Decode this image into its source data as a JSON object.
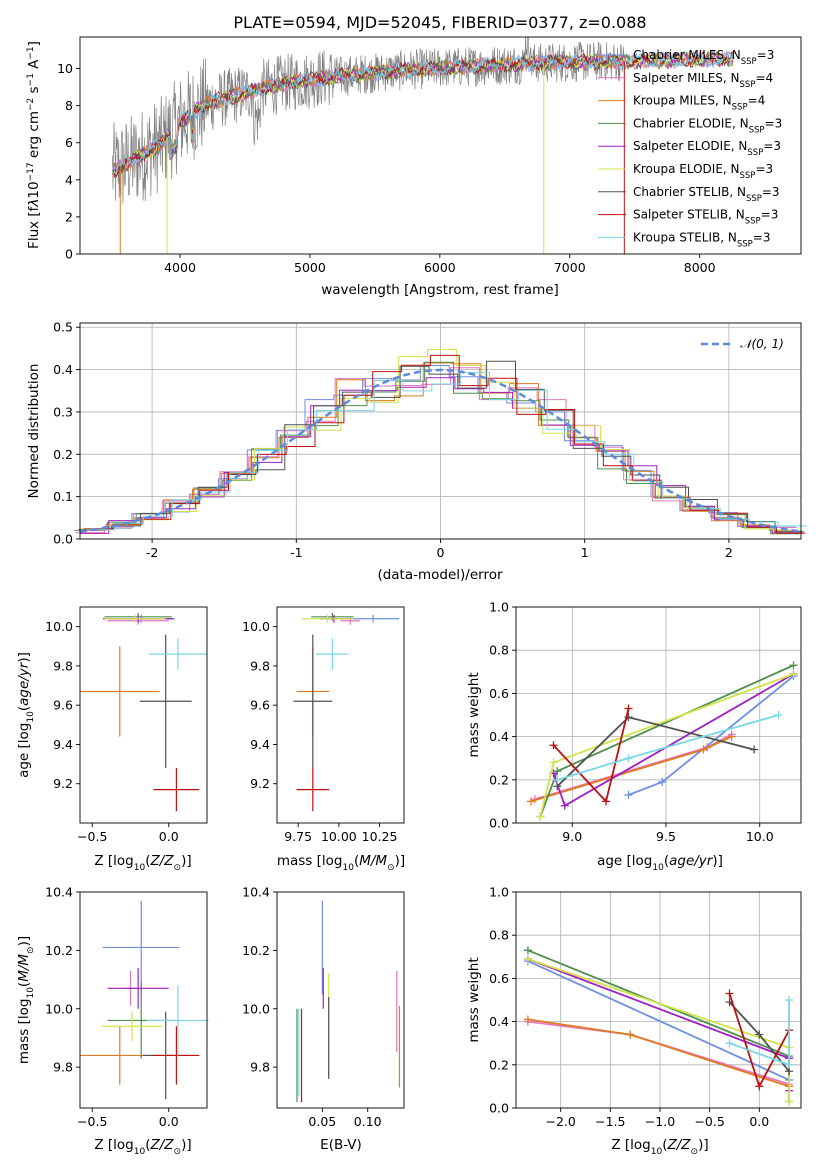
{
  "title": "PLATE=0594, MJD=52045, FIBERID=0377, z=0.088",
  "colors": {
    "chabrier_miles": "#6f8fe0",
    "salpeter_miles": "#e377c2",
    "kroupa_miles": "#e07b1f",
    "chabrier_elodie": "#4f8f4f",
    "salpeter_elodie": "#a020c0",
    "kroupa_elodie": "#d2e24a",
    "chabrier_stelib": "#505050",
    "salpeter_stelib": "#c01010",
    "kroupa_stelib": "#7ad6e6",
    "data": "#808080"
  },
  "chart_data": [
    {
      "type": "line",
      "xlabel": "wavelength [Angstrom, rest frame]",
      "ylabel": "Flux [f_λ10^-17 erg cm^-2 s^-1 A^-1]",
      "xlim": [
        3230,
        8780
      ],
      "ylim": [
        0,
        11.7
      ],
      "xticks": [
        4000,
        5000,
        6000,
        7000,
        8000
      ],
      "yticks": [
        0,
        2,
        4,
        6,
        8,
        10
      ],
      "legend_position": "right",
      "legend": [
        {
          "key": "chabrier_miles",
          "label": "Chabrier MILES, N_SSP=3"
        },
        {
          "key": "salpeter_miles",
          "label": "Salpeter MILES, N_SSP=4"
        },
        {
          "key": "kroupa_miles",
          "label": "Kroupa MILES, N_SSP=4"
        },
        {
          "key": "chabrier_elodie",
          "label": "Chabrier ELODIE, N_SSP=3"
        },
        {
          "key": "salpeter_elodie",
          "label": "Salpeter ELODIE, N_SSP=3"
        },
        {
          "key": "kroupa_elodie",
          "label": "Kroupa ELODIE, N_SSP=3"
        },
        {
          "key": "chabrier_stelib",
          "label": "Chabrier STELIB, N_SSP=3"
        },
        {
          "key": "salpeter_stelib",
          "label": "Salpeter STELIB, N_SSP=3"
        },
        {
          "key": "kroupa_stelib",
          "label": "Kroupa STELIB, N_SSP=3"
        }
      ],
      "model_continuum": {
        "x": [
          3480,
          3550,
          3700,
          3850,
          4000,
          4200,
          4500,
          4800,
          5100,
          5400,
          5800,
          6200,
          6600,
          7000,
          7400,
          7800,
          8200
        ],
        "y": [
          4.5,
          4.7,
          5.3,
          5.9,
          7.1,
          8.1,
          8.7,
          9.2,
          9.5,
          9.7,
          9.95,
          10.1,
          10.25,
          10.35,
          10.4,
          10.45,
          10.5
        ]
      },
      "data_range": [
        3480,
        7420
      ]
    },
    {
      "type": "line",
      "xlabel": "(data-model)/error",
      "ylabel": "Normed distribution",
      "xlim": [
        -2.5,
        2.5
      ],
      "ylim": [
        0,
        0.51
      ],
      "xticks": [
        -2,
        -1,
        0,
        1,
        2
      ],
      "yticks": [
        0.0,
        0.1,
        0.2,
        0.3,
        0.4,
        0.5
      ],
      "grid": true,
      "reference": {
        "label": "N(0,1)",
        "type": "gaussian",
        "mean": 0,
        "sigma": 1,
        "color": "#5b8bd9"
      },
      "legend_position": "top-right",
      "hist_bins": [
        -2.5,
        -2.3,
        -2.1,
        -1.9,
        -1.7,
        -1.5,
        -1.3,
        -1.1,
        -0.9,
        -0.7,
        -0.5,
        -0.3,
        -0.1,
        0.1,
        0.3,
        0.5,
        0.7,
        0.9,
        1.1,
        1.3,
        1.5,
        1.7,
        1.9,
        2.1,
        2.3,
        2.5
      ]
    },
    {
      "type": "scatter",
      "xlabel": "Z [log10(Z/Z_sun)]",
      "ylabel": "age  [log10(age/yr)]",
      "xlim": [
        -0.58,
        0.25
      ],
      "ylim": [
        9.0,
        10.1
      ],
      "xticks": [
        -0.5,
        0.0
      ],
      "xticklabels": [
        "−0.5",
        "0.0"
      ],
      "yticks": [
        9.2,
        9.4,
        9.6,
        9.8,
        10.0
      ],
      "yticklabels": [
        "9.2",
        "9.4",
        "9.6",
        "9.8",
        "10.0"
      ],
      "points": [
        {
          "key": "chabrier_miles",
          "x": -0.18,
          "xerr": 0.22,
          "y": 10.04,
          "yerr": 0.02
        },
        {
          "key": "salpeter_miles",
          "x": -0.2,
          "xerr": 0.2,
          "y": 10.03,
          "yerr": 0.02
        },
        {
          "key": "kroupa_miles",
          "x": -0.32,
          "xerr": 0.26,
          "y": 9.67,
          "yerr": 0.23
        },
        {
          "key": "chabrier_elodie",
          "x": -0.2,
          "xerr": 0.22,
          "y": 10.05,
          "yerr": 0.02
        },
        {
          "key": "salpeter_elodie",
          "x": -0.2,
          "xerr": 0.23,
          "y": 10.04,
          "yerr": 0.02
        },
        {
          "key": "kroupa_elodie",
          "x": -0.22,
          "xerr": 0.2,
          "y": 10.04,
          "yerr": 0.02
        },
        {
          "key": "chabrier_stelib",
          "x": -0.02,
          "xerr": 0.17,
          "y": 9.62,
          "yerr": 0.34
        },
        {
          "key": "salpeter_stelib",
          "x": 0.05,
          "xerr": 0.15,
          "y": 9.17,
          "yerr": 0.11
        },
        {
          "key": "kroupa_stelib",
          "x": 0.06,
          "xerr": 0.19,
          "y": 9.86,
          "yerr": 0.08
        }
      ]
    },
    {
      "type": "scatter",
      "xlabel": "mass [log10(M/M_sun)]",
      "ylabel": "",
      "xlim": [
        9.62,
        10.4
      ],
      "ylim": [
        9.0,
        10.1
      ],
      "xticks": [
        9.75,
        10.0,
        10.25
      ],
      "xticklabels": [
        "9.75",
        "10.00",
        "10.25"
      ],
      "yticks": [
        9.2,
        9.4,
        9.6,
        9.8,
        10.0
      ],
      "yticklabels": [
        "9.2",
        "9.4",
        "9.6",
        "9.8",
        "10.0"
      ],
      "points": [
        {
          "key": "chabrier_miles",
          "x": 10.21,
          "xerr": 0.16,
          "y": 10.04,
          "yerr": 0.02
        },
        {
          "key": "salpeter_miles",
          "x": 10.07,
          "xerr": 0.06,
          "y": 10.03,
          "yerr": 0.02
        },
        {
          "key": "kroupa_miles",
          "x": 9.84,
          "xerr": 0.1,
          "y": 9.67,
          "yerr": 0.23
        },
        {
          "key": "chabrier_elodie",
          "x": 9.96,
          "xerr": 0.13,
          "y": 10.05,
          "yerr": 0.02
        },
        {
          "key": "salpeter_elodie",
          "x": 9.97,
          "xerr": 0.09,
          "y": 10.04,
          "yerr": 0.02
        },
        {
          "key": "kroupa_elodie",
          "x": 9.93,
          "xerr": 0.16,
          "y": 10.04,
          "yerr": 0.02
        },
        {
          "key": "chabrier_stelib",
          "x": 9.84,
          "xerr": 0.12,
          "y": 9.62,
          "yerr": 0.34
        },
        {
          "key": "salpeter_stelib",
          "x": 9.84,
          "xerr": 0.1,
          "y": 9.17,
          "yerr": 0.11
        },
        {
          "key": "kroupa_stelib",
          "x": 9.96,
          "xerr": 0.1,
          "y": 9.86,
          "yerr": 0.08
        }
      ]
    },
    {
      "type": "line",
      "xlabel": "age  [log10(age/yr)]",
      "ylabel": "mass weight",
      "xlim": [
        8.7,
        10.22
      ],
      "ylim": [
        0.0,
        1.0
      ],
      "xticks": [
        9.0,
        9.5,
        10.0
      ],
      "xticklabels": [
        "9.0",
        "9.5",
        "10.0"
      ],
      "yticks": [
        0.0,
        0.2,
        0.4,
        0.6,
        0.8,
        1.0
      ],
      "yticklabels": [
        "0.0",
        "0.2",
        "0.4",
        "0.6",
        "0.8",
        "1.0"
      ],
      "grid": true,
      "series": [
        {
          "key": "chabrier_miles",
          "x": [
            9.3,
            9.48,
            10.18
          ],
          "y": [
            0.13,
            0.19,
            0.68
          ]
        },
        {
          "key": "salpeter_miles",
          "x": [
            8.8,
            9.72,
            9.85
          ],
          "y": [
            0.11,
            0.35,
            0.41
          ]
        },
        {
          "key": "kroupa_miles",
          "x": [
            8.78,
            9.7,
            9.85
          ],
          "y": [
            0.1,
            0.34,
            0.4
          ]
        },
        {
          "key": "chabrier_elodie",
          "x": [
            8.83,
            8.92,
            10.18
          ],
          "y": [
            0.03,
            0.24,
            0.73
          ]
        },
        {
          "key": "salpeter_elodie",
          "x": [
            8.9,
            8.96,
            10.18
          ],
          "y": [
            0.23,
            0.08,
            0.69
          ]
        },
        {
          "key": "kroupa_elodie",
          "x": [
            8.83,
            8.9,
            10.18
          ],
          "y": [
            0.03,
            0.28,
            0.69
          ]
        },
        {
          "key": "chabrier_stelib",
          "x": [
            8.92,
            9.3,
            9.97
          ],
          "y": [
            0.17,
            0.49,
            0.34
          ]
        },
        {
          "key": "salpeter_stelib",
          "x": [
            8.9,
            9.18,
            9.3
          ],
          "y": [
            0.36,
            0.1,
            0.53
          ]
        },
        {
          "key": "kroupa_stelib",
          "x": [
            8.92,
            9.3,
            10.1
          ],
          "y": [
            0.2,
            0.3,
            0.5
          ]
        }
      ]
    },
    {
      "type": "scatter",
      "xlabel": "Z [log10(Z/Z_sun)]",
      "ylabel": "mass [log10(M/M_sun)]",
      "xlim": [
        -0.58,
        0.25
      ],
      "ylim": [
        9.66,
        10.4
      ],
      "xticks": [
        -0.5,
        0.0
      ],
      "xticklabels": [
        "−0.5",
        "0.0"
      ],
      "yticks": [
        9.8,
        10.0,
        10.2,
        10.4
      ],
      "yticklabels": [
        "9.8",
        "10.0",
        "10.2",
        "10.4"
      ],
      "points": [
        {
          "key": "chabrier_miles",
          "x": -0.18,
          "xerr": 0.25,
          "y": 10.21,
          "yerr": 0.16
        },
        {
          "key": "salpeter_miles",
          "x": -0.25,
          "xerr": 0.05,
          "y": 10.07,
          "yerr": 0.06
        },
        {
          "key": "kroupa_miles",
          "x": -0.32,
          "xerr": 0.26,
          "y": 9.84,
          "yerr": 0.1
        },
        {
          "key": "chabrier_elodie",
          "x": -0.18,
          "xerr": 0.22,
          "y": 9.96,
          "yerr": 0.13
        },
        {
          "key": "salpeter_elodie",
          "x": -0.2,
          "xerr": 0.2,
          "y": 10.07,
          "yerr": 0.07
        },
        {
          "key": "kroupa_elodie",
          "x": -0.24,
          "xerr": 0.2,
          "y": 9.94,
          "yerr": 0.05
        },
        {
          "key": "chabrier_stelib",
          "x": -0.02,
          "xerr": 0.15,
          "y": 9.84,
          "yerr": 0.15
        },
        {
          "key": "salpeter_stelib",
          "x": 0.05,
          "xerr": 0.15,
          "y": 9.84,
          "yerr": 0.1
        },
        {
          "key": "kroupa_stelib",
          "x": 0.06,
          "xerr": 0.2,
          "y": 9.96,
          "yerr": 0.12
        }
      ]
    },
    {
      "type": "scatter",
      "xlabel": "E(B-V)",
      "ylabel": "",
      "xlim": [
        0.0,
        0.14
      ],
      "ylim": [
        9.66,
        10.4
      ],
      "xticks": [
        0.05,
        0.1
      ],
      "xticklabels": [
        "0.05",
        "0.10"
      ],
      "yticks": [
        9.8,
        10.0,
        10.2,
        10.4
      ],
      "yticklabels": [
        "9.8",
        "10.0",
        "10.2",
        "10.4"
      ],
      "points": [
        {
          "key": "chabrier_miles",
          "x": 0.05,
          "xerr": 0.0,
          "y": 10.21,
          "yerr": 0.16
        },
        {
          "key": "salpeter_miles",
          "x": 0.132,
          "xerr": 0.0,
          "y": 9.99,
          "yerr": 0.14
        },
        {
          "key": "kroupa_miles",
          "x": 0.135,
          "xerr": 0.0,
          "y": 9.87,
          "yerr": 0.14
        },
        {
          "key": "chabrier_elodie",
          "x": 0.022,
          "xerr": 0.0,
          "y": 9.84,
          "yerr": 0.16
        },
        {
          "key": "salpeter_elodie",
          "x": 0.051,
          "xerr": 0.0,
          "y": 10.07,
          "yerr": 0.07
        },
        {
          "key": "kroupa_elodie",
          "x": 0.057,
          "xerr": 0.0,
          "y": 9.94,
          "yerr": 0.18
        },
        {
          "key": "chabrier_stelib",
          "x": 0.057,
          "xerr": 0.0,
          "y": 9.9,
          "yerr": 0.14
        },
        {
          "key": "salpeter_stelib",
          "x": 0.027,
          "xerr": 0.0,
          "y": 9.84,
          "yerr": 0.16
        },
        {
          "key": "kroupa_stelib",
          "x": 0.024,
          "xerr": 0.0,
          "y": 9.85,
          "yerr": 0.15
        }
      ]
    },
    {
      "type": "line",
      "xlabel": "Z [log10(Z/Z_sun)]",
      "ylabel": "mass weight",
      "xlim": [
        -2.45,
        0.42
      ],
      "ylim": [
        0.0,
        1.0
      ],
      "xticks": [
        -2.0,
        -1.5,
        -1.0,
        -0.5,
        0.0
      ],
      "xticklabels": [
        "−2.0",
        "−1.5",
        "−1.0",
        "−0.5",
        "0.0"
      ],
      "yticks": [
        0.0,
        0.2,
        0.4,
        0.6,
        0.8,
        1.0
      ],
      "yticklabels": [
        "0.0",
        "0.2",
        "0.4",
        "0.6",
        "0.8",
        "1.0"
      ],
      "grid": true,
      "series": [
        {
          "key": "chabrier_miles",
          "x": [
            -2.33,
            0.3
          ],
          "y": [
            0.68,
            0.13
          ]
        },
        {
          "key": "salpeter_miles",
          "x": [
            -2.33,
            -1.3,
            0.3
          ],
          "y": [
            0.4,
            0.34,
            0.11
          ]
        },
        {
          "key": "kroupa_miles",
          "x": [
            -2.33,
            -1.3,
            0.3
          ],
          "y": [
            0.41,
            0.34,
            0.1
          ]
        },
        {
          "key": "chabrier_elodie",
          "x": [
            -2.33,
            0.3,
            0.3
          ],
          "y": [
            0.73,
            0.24,
            0.03
          ]
        },
        {
          "key": "salpeter_elodie",
          "x": [
            -2.33,
            0.3,
            0.3
          ],
          "y": [
            0.69,
            0.23,
            0.08
          ]
        },
        {
          "key": "kroupa_elodie",
          "x": [
            -2.33,
            0.3,
            0.3
          ],
          "y": [
            0.69,
            0.28,
            0.03
          ]
        },
        {
          "key": "chabrier_stelib",
          "x": [
            -0.3,
            0.0,
            0.3
          ],
          "y": [
            0.49,
            0.34,
            0.17
          ]
        },
        {
          "key": "salpeter_stelib",
          "x": [
            -0.3,
            0.0,
            0.3
          ],
          "y": [
            0.53,
            0.1,
            0.36
          ]
        },
        {
          "key": "kroupa_stelib",
          "x": [
            -0.3,
            0.3,
            0.3
          ],
          "y": [
            0.3,
            0.2,
            0.5
          ]
        }
      ]
    }
  ]
}
